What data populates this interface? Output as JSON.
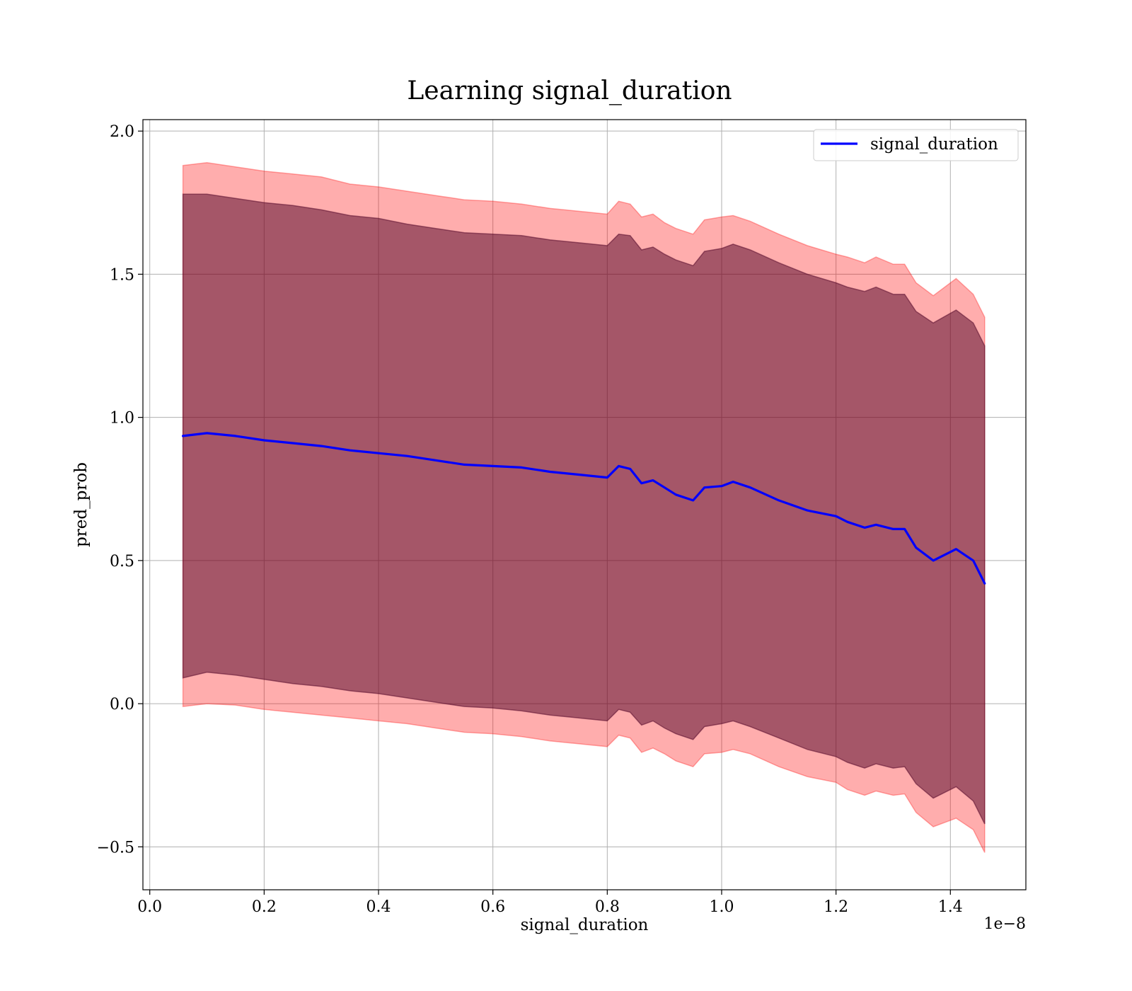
{
  "chart_data": {
    "type": "line",
    "title": "Learning signal_duration",
    "xlabel": "signal_duration",
    "ylabel": "pred_prob",
    "x_offset_label": "1e−8",
    "xlim": [
      -0.012,
      1.532
    ],
    "ylim": [
      -0.65,
      2.04
    ],
    "grid": true,
    "legend": {
      "placement": "top-right",
      "entries": [
        "signal_duration"
      ]
    },
    "x_ticks": [
      {
        "value": 0.0,
        "label": "0.0"
      },
      {
        "value": 0.2,
        "label": "0.2"
      },
      {
        "value": 0.4,
        "label": "0.4"
      },
      {
        "value": 0.6,
        "label": "0.6"
      },
      {
        "value": 0.8,
        "label": "0.8"
      },
      {
        "value": 1.0,
        "label": "1.0"
      },
      {
        "value": 1.2,
        "label": "1.2"
      },
      {
        "value": 1.4,
        "label": "1.4"
      }
    ],
    "y_ticks": [
      {
        "value": -0.5,
        "label": "−0.5"
      },
      {
        "value": 0.0,
        "label": "0.0"
      },
      {
        "value": 0.5,
        "label": "0.5"
      },
      {
        "value": 1.0,
        "label": "1.0"
      },
      {
        "value": 1.5,
        "label": "1.5"
      },
      {
        "value": 2.0,
        "label": "2.0"
      }
    ],
    "series": [
      {
        "name": "signal_duration",
        "color": "#0000ff",
        "x": [
          0.058,
          0.1,
          0.15,
          0.2,
          0.25,
          0.3,
          0.35,
          0.4,
          0.45,
          0.5,
          0.55,
          0.6,
          0.65,
          0.7,
          0.75,
          0.8,
          0.82,
          0.84,
          0.86,
          0.88,
          0.9,
          0.92,
          0.95,
          0.97,
          1.0,
          1.02,
          1.05,
          1.1,
          1.15,
          1.2,
          1.22,
          1.25,
          1.27,
          1.3,
          1.32,
          1.34,
          1.37,
          1.41,
          1.44,
          1.46
        ],
        "y": [
          0.935,
          0.945,
          0.935,
          0.92,
          0.91,
          0.9,
          0.885,
          0.875,
          0.865,
          0.85,
          0.835,
          0.83,
          0.825,
          0.81,
          0.8,
          0.79,
          0.83,
          0.82,
          0.77,
          0.78,
          0.755,
          0.73,
          0.71,
          0.755,
          0.76,
          0.775,
          0.755,
          0.71,
          0.675,
          0.655,
          0.635,
          0.615,
          0.625,
          0.61,
          0.61,
          0.545,
          0.5,
          0.54,
          0.5,
          0.42
        ]
      }
    ],
    "bands": [
      {
        "description": "outer band",
        "color": "#ff0000",
        "opacity": 0.32,
        "x": [
          0.058,
          0.1,
          0.15,
          0.2,
          0.25,
          0.3,
          0.35,
          0.4,
          0.45,
          0.5,
          0.55,
          0.6,
          0.65,
          0.7,
          0.75,
          0.8,
          0.82,
          0.84,
          0.86,
          0.88,
          0.9,
          0.92,
          0.95,
          0.97,
          1.0,
          1.02,
          1.05,
          1.1,
          1.15,
          1.2,
          1.22,
          1.25,
          1.27,
          1.3,
          1.32,
          1.34,
          1.37,
          1.41,
          1.44,
          1.46
        ],
        "upper": [
          1.88,
          1.89,
          1.875,
          1.86,
          1.85,
          1.84,
          1.815,
          1.805,
          1.79,
          1.775,
          1.76,
          1.755,
          1.745,
          1.73,
          1.72,
          1.71,
          1.755,
          1.745,
          1.7,
          1.71,
          1.68,
          1.66,
          1.64,
          1.69,
          1.7,
          1.705,
          1.685,
          1.64,
          1.6,
          1.57,
          1.56,
          1.54,
          1.56,
          1.535,
          1.535,
          1.47,
          1.425,
          1.485,
          1.43,
          1.35
        ],
        "lower": [
          -0.01,
          0.0,
          -0.005,
          -0.02,
          -0.03,
          -0.04,
          -0.05,
          -0.06,
          -0.07,
          -0.085,
          -0.1,
          -0.105,
          -0.115,
          -0.13,
          -0.14,
          -0.15,
          -0.11,
          -0.12,
          -0.17,
          -0.155,
          -0.175,
          -0.2,
          -0.22,
          -0.175,
          -0.17,
          -0.16,
          -0.175,
          -0.22,
          -0.255,
          -0.275,
          -0.3,
          -0.32,
          -0.305,
          -0.32,
          -0.315,
          -0.38,
          -0.43,
          -0.4,
          -0.44,
          -0.52
        ]
      },
      {
        "description": "inner band",
        "color": "#4b0023",
        "opacity": 0.5,
        "x": [
          0.058,
          0.1,
          0.15,
          0.2,
          0.25,
          0.3,
          0.35,
          0.4,
          0.45,
          0.5,
          0.55,
          0.6,
          0.65,
          0.7,
          0.75,
          0.8,
          0.82,
          0.84,
          0.86,
          0.88,
          0.9,
          0.92,
          0.95,
          0.97,
          1.0,
          1.02,
          1.05,
          1.1,
          1.15,
          1.2,
          1.22,
          1.25,
          1.27,
          1.3,
          1.32,
          1.34,
          1.37,
          1.41,
          1.44,
          1.46
        ],
        "upper": [
          1.78,
          1.78,
          1.765,
          1.75,
          1.74,
          1.725,
          1.705,
          1.695,
          1.675,
          1.66,
          1.645,
          1.64,
          1.635,
          1.62,
          1.61,
          1.6,
          1.64,
          1.635,
          1.585,
          1.595,
          1.57,
          1.55,
          1.53,
          1.58,
          1.59,
          1.605,
          1.585,
          1.54,
          1.5,
          1.47,
          1.455,
          1.44,
          1.455,
          1.43,
          1.43,
          1.37,
          1.33,
          1.375,
          1.33,
          1.25
        ],
        "lower": [
          0.09,
          0.11,
          0.1,
          0.085,
          0.07,
          0.06,
          0.045,
          0.035,
          0.02,
          0.005,
          -0.01,
          -0.015,
          -0.025,
          -0.04,
          -0.05,
          -0.06,
          -0.02,
          -0.03,
          -0.075,
          -0.06,
          -0.085,
          -0.105,
          -0.125,
          -0.08,
          -0.07,
          -0.06,
          -0.08,
          -0.12,
          -0.16,
          -0.185,
          -0.205,
          -0.225,
          -0.21,
          -0.225,
          -0.22,
          -0.28,
          -0.33,
          -0.29,
          -0.34,
          -0.42
        ]
      }
    ]
  }
}
